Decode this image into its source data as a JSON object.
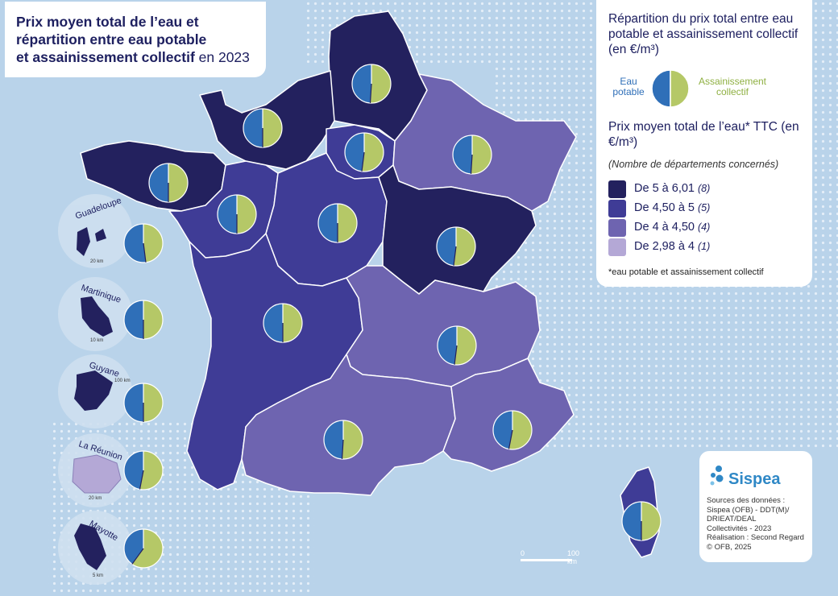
{
  "title": {
    "line1": "Prix moyen total de l’eau et",
    "line2": "répartition entre eau potable",
    "line3_bold": "et assainissement collectif",
    "line3_rest": " en 2023"
  },
  "legend": {
    "pie_title_bold": "Répartition du prix total entre eau potable et assainissement collectif",
    "pie_title_unit": " (en €/m³)",
    "eau_potable": "Eau potable",
    "assainissement": "Assainissement collectif",
    "price_title_bold": "Prix moyen total de l’eau* TTC",
    "price_title_unit": " (en €/m³)",
    "note": "(Nombre de départements concernés)",
    "classes": [
      {
        "label": "De 5 à 6,01",
        "count": "(8)",
        "color": "#23215e"
      },
      {
        "label": "De 4,50 à 5",
        "count": "(5)",
        "color": "#3f3c96"
      },
      {
        "label": "De 4 à 4,50",
        "count": "(4)",
        "color": "#6e64b0"
      },
      {
        "label": "De 2,98 à 4",
        "count": "(1)",
        "color": "#b4a8d6"
      }
    ],
    "footnote": "*eau potable et assainissement collectif"
  },
  "colors": {
    "eau_potable": "#2f6fb8",
    "assainissement": "#b5c867",
    "sea": "#b9d3ea"
  },
  "overseas": [
    {
      "name": "Guadeloupe",
      "scale": "20 km"
    },
    {
      "name": "Martinique",
      "scale": "10 km"
    },
    {
      "name": "Guyane",
      "scale": "100 km"
    },
    {
      "name": "La Réunion",
      "scale": "20 km"
    },
    {
      "name": "Mayotte",
      "scale": "5 km"
    }
  ],
  "scale_bar": {
    "start": "0",
    "end": "100 km"
  },
  "source": {
    "logo": "Sispea",
    "lines": [
      "Sources des données :",
      "Sispea (OFB) - DDT(M)/",
      "DRIEAT/DEAL",
      "Collectivités - 2023",
      "Réalisation : Second Regard",
      "© OFB, 2025"
    ]
  }
}
